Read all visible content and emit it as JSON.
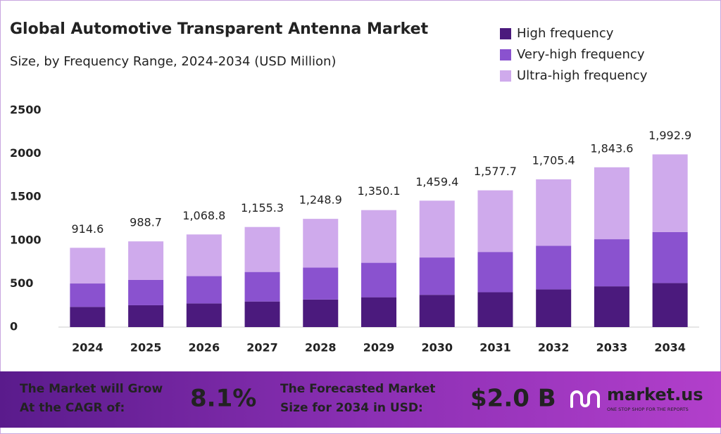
{
  "chart_data": {
    "type": "stacked_bar",
    "title": "Global Automotive Transparent Antenna Market",
    "subtitle": "Size, by Frequency Range, 2024-2034 (USD Million)",
    "categories": [
      "2024",
      "2025",
      "2026",
      "2027",
      "2028",
      "2029",
      "2030",
      "2031",
      "2032",
      "2033",
      "2034"
    ],
    "series": [
      {
        "name": "High frequency",
        "color": "#4b1a7d",
        "values": [
          233,
          252,
          273,
          295,
          318,
          344,
          372,
          402,
          435,
          470,
          508
        ]
      },
      {
        "name": "Very-high frequency",
        "color": "#8a52cf",
        "values": [
          270,
          292,
          315,
          341,
          368,
          398,
          431,
          465,
          503,
          544,
          588
        ]
      },
      {
        "name": "Ultra-high frequency",
        "color": "#cfaaec",
        "values": [
          412,
          445,
          481,
          519,
          563,
          608,
          656,
          711,
          767,
          830,
          897
        ]
      }
    ],
    "total_labels": [
      "914.6",
      "988.7",
      "1,068.8",
      "1,155.3",
      "1,248.9",
      "1,350.1",
      "1,459.4",
      "1,577.7",
      "1,705.4",
      "1,843.6",
      "1,992.9"
    ],
    "ylim": [
      0,
      2500
    ],
    "yticks": [
      0,
      500,
      1000,
      1500,
      2000,
      2500
    ],
    "grid": false,
    "legend": "top-right"
  },
  "footer": {
    "cagr_text": [
      "The Market will Grow",
      "At the CAGR of:"
    ],
    "cagr": "8.1%",
    "forecast_text": [
      "The Forecasted Market",
      "Size for 2034 in USD:"
    ],
    "forecast": "$2.0 B",
    "brand": "market.us",
    "tagline": "ONE STOP SHOP FOR THE REPORTS"
  }
}
